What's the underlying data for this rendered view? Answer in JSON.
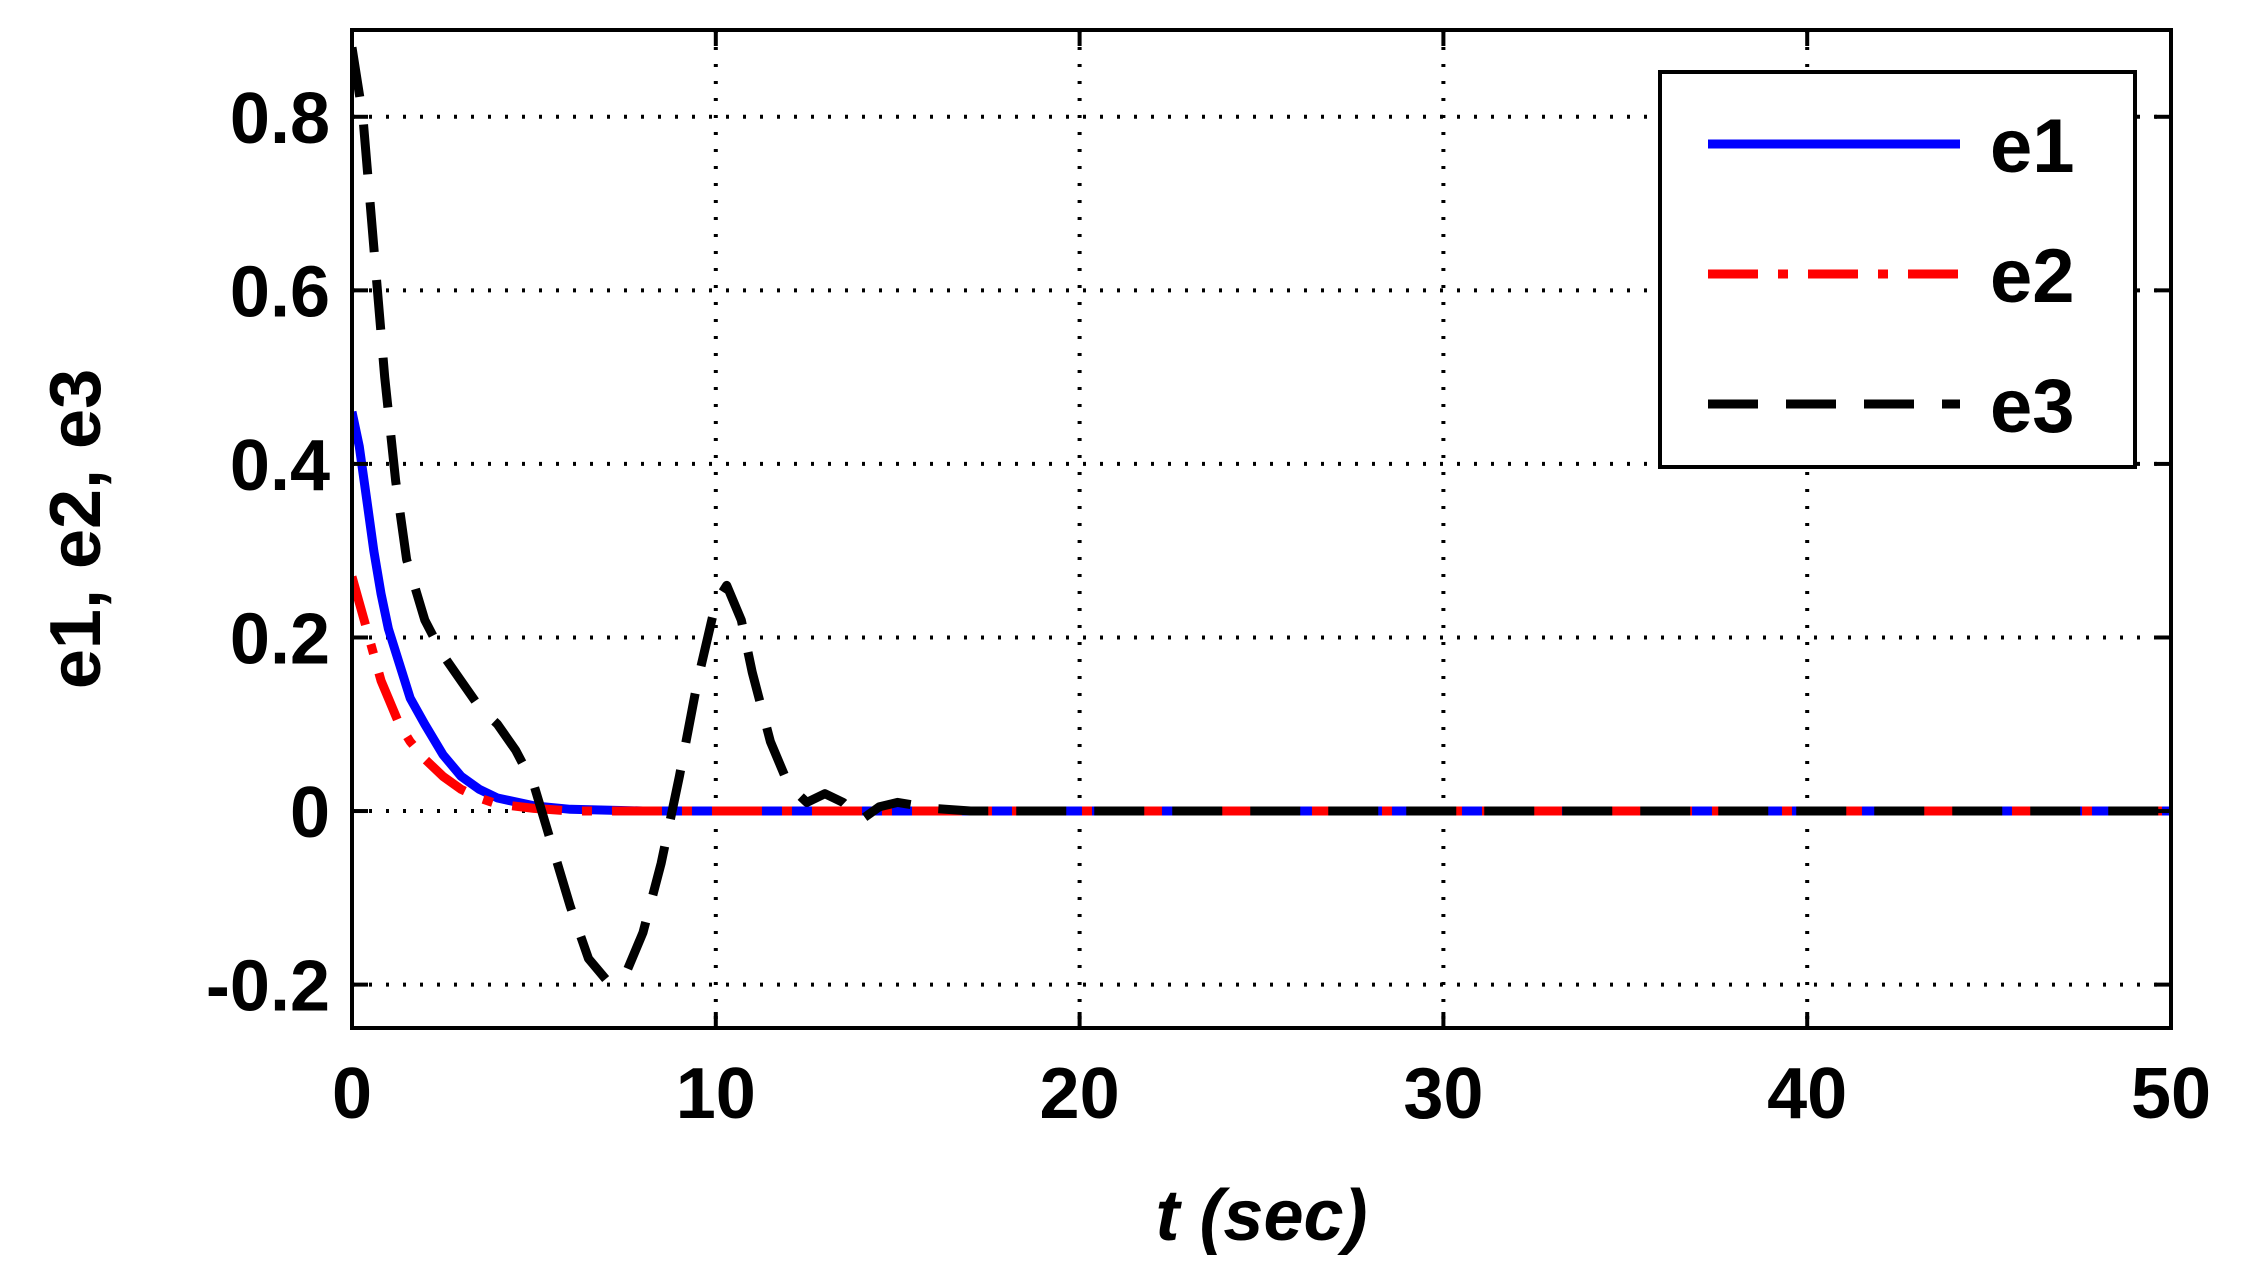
{
  "chart_data": {
    "type": "line",
    "title": "",
    "xlabel_italic": "t",
    "xlabel_rest": " (sec)",
    "ylabel": "e1, e2, e3",
    "xlim": [
      0,
      50
    ],
    "ylim": [
      -0.25,
      0.9
    ],
    "xticks": [
      0,
      10,
      20,
      30,
      40,
      50
    ],
    "yticks": [
      -0.2,
      0,
      0.2,
      0.4,
      0.6,
      0.8
    ],
    "xtick_labels": [
      "0",
      "10",
      "20",
      "30",
      "40",
      "50"
    ],
    "ytick_labels": [
      "-0.2",
      "0",
      "0.2",
      "0.4",
      "0.6",
      "0.8"
    ],
    "grid": true,
    "legend_position": "top-right",
    "series": [
      {
        "name": "e1",
        "color": "#0000ff",
        "style": "solid",
        "points": [
          [
            0,
            0.46
          ],
          [
            0.2,
            0.42
          ],
          [
            0.4,
            0.36
          ],
          [
            0.6,
            0.3
          ],
          [
            0.8,
            0.25
          ],
          [
            1.0,
            0.21
          ],
          [
            1.3,
            0.17
          ],
          [
            1.6,
            0.13
          ],
          [
            2.0,
            0.1
          ],
          [
            2.5,
            0.065
          ],
          [
            3.0,
            0.04
          ],
          [
            3.5,
            0.025
          ],
          [
            4.0,
            0.015
          ],
          [
            5.0,
            0.006
          ],
          [
            6.0,
            0.002
          ],
          [
            8.0,
            0.0
          ],
          [
            50,
            0.0
          ]
        ]
      },
      {
        "name": "e2",
        "color": "#ff0000",
        "style": "dashdot",
        "points": [
          [
            0,
            0.27
          ],
          [
            0.2,
            0.24
          ],
          [
            0.4,
            0.21
          ],
          [
            0.6,
            0.18
          ],
          [
            0.8,
            0.15
          ],
          [
            1.0,
            0.13
          ],
          [
            1.3,
            0.1
          ],
          [
            1.6,
            0.08
          ],
          [
            2.0,
            0.06
          ],
          [
            2.5,
            0.04
          ],
          [
            3.0,
            0.025
          ],
          [
            3.5,
            0.015
          ],
          [
            4.0,
            0.008
          ],
          [
            5.0,
            0.003
          ],
          [
            6.0,
            0.0
          ],
          [
            50,
            0.0
          ]
        ]
      },
      {
        "name": "e3",
        "color": "#000000",
        "style": "dashed",
        "points": [
          [
            0,
            0.88
          ],
          [
            0.3,
            0.8
          ],
          [
            0.6,
            0.65
          ],
          [
            0.9,
            0.5
          ],
          [
            1.2,
            0.38
          ],
          [
            1.5,
            0.29
          ],
          [
            2.0,
            0.22
          ],
          [
            2.5,
            0.18
          ],
          [
            3.0,
            0.15
          ],
          [
            3.5,
            0.12
          ],
          [
            4.0,
            0.1
          ],
          [
            4.5,
            0.07
          ],
          [
            5.0,
            0.03
          ],
          [
            5.5,
            -0.04
          ],
          [
            6.0,
            -0.11
          ],
          [
            6.5,
            -0.17
          ],
          [
            7.0,
            -0.195
          ],
          [
            7.5,
            -0.19
          ],
          [
            8.0,
            -0.14
          ],
          [
            8.5,
            -0.06
          ],
          [
            9.0,
            0.04
          ],
          [
            9.5,
            0.15
          ],
          [
            10.0,
            0.24
          ],
          [
            10.3,
            0.26
          ],
          [
            10.7,
            0.22
          ],
          [
            11.0,
            0.16
          ],
          [
            11.5,
            0.08
          ],
          [
            12.0,
            0.03
          ],
          [
            12.5,
            0.01
          ],
          [
            13.0,
            0.02
          ],
          [
            13.5,
            0.01
          ],
          [
            14.0,
            -0.01
          ],
          [
            14.5,
            0.005
          ],
          [
            15.0,
            0.01
          ],
          [
            16.0,
            0.003
          ],
          [
            17.0,
            0.0
          ],
          [
            50,
            0.0
          ]
        ]
      }
    ]
  }
}
